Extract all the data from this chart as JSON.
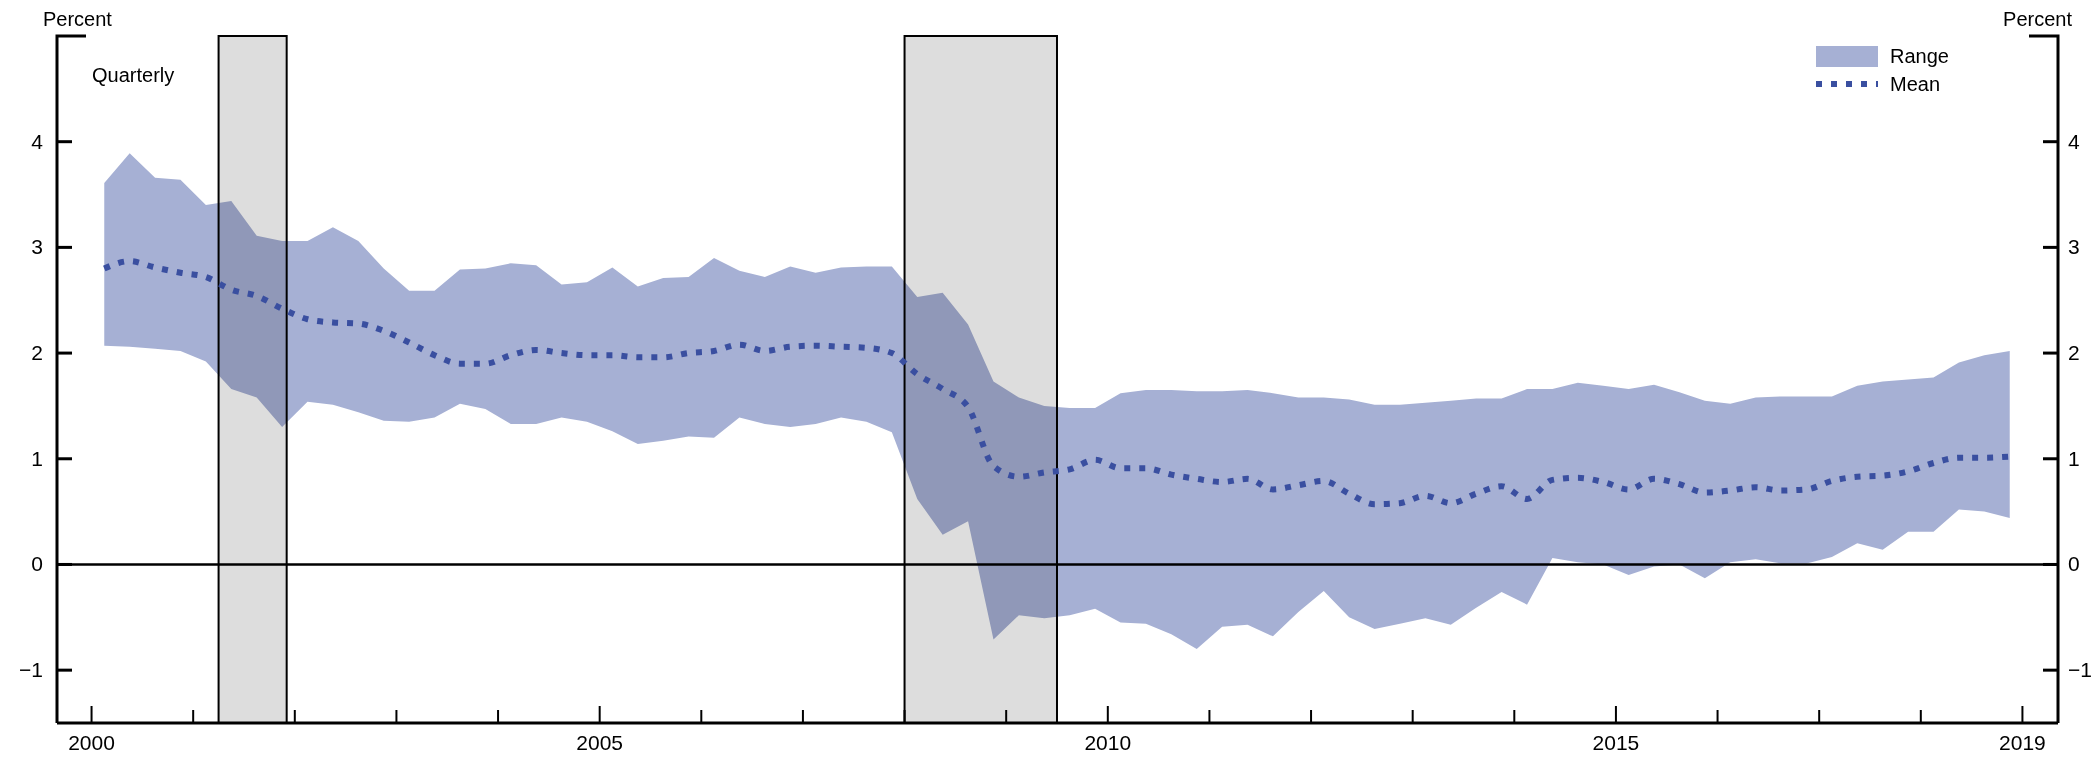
{
  "chart_data": {
    "type": "line",
    "ylabel": "Percent",
    "y2label": "Percent",
    "annotations": [
      "Quarterly",
      "Range"
    ],
    "x": [
      2000.125,
      2000.375,
      2000.625,
      2000.875,
      2001.125,
      2001.375,
      2001.625,
      2001.875,
      2002.125,
      2002.375,
      2002.625,
      2002.875,
      2003.125,
      2003.375,
      2003.625,
      2003.875,
      2004.125,
      2004.375,
      2004.625,
      2004.875,
      2005.125,
      2005.375,
      2005.625,
      2005.875,
      2006.125,
      2006.375,
      2006.625,
      2006.875,
      2007.125,
      2007.375,
      2007.625,
      2007.875,
      2008.125,
      2008.375,
      2008.625,
      2008.875,
      2009.125,
      2009.375,
      2009.625,
      2009.875,
      2010.125,
      2010.375,
      2010.625,
      2010.875,
      2011.125,
      2011.375,
      2011.625,
      2011.875,
      2012.125,
      2012.375,
      2012.625,
      2012.875,
      2013.125,
      2013.375,
      2013.625,
      2013.875,
      2014.125,
      2014.375,
      2014.625,
      2014.875,
      2015.125,
      2015.375,
      2015.625,
      2015.875,
      2016.125,
      2016.375,
      2016.625,
      2016.875,
      2017.125,
      2017.375,
      2017.625,
      2017.875,
      2018.125,
      2018.375,
      2018.625,
      2018.875
    ],
    "series": [
      {
        "name": "Mean",
        "color": "#3a4fa0",
        "line_style": "dotted",
        "values": [
          2.8,
          2.87,
          2.81,
          2.76,
          2.72,
          2.6,
          2.54,
          2.42,
          2.32,
          2.29,
          2.28,
          2.21,
          2.1,
          1.98,
          1.9,
          1.9,
          1.98,
          2.03,
          2.0,
          1.98,
          1.98,
          1.96,
          1.96,
          2.0,
          2.02,
          2.08,
          2.02,
          2.06,
          2.07,
          2.06,
          2.05,
          2.0,
          1.8,
          1.66,
          1.49,
          0.93,
          0.83,
          0.87,
          0.9,
          0.99,
          0.91,
          0.91,
          0.85,
          0.81,
          0.78,
          0.81,
          0.71,
          0.75,
          0.79,
          0.67,
          0.57,
          0.58,
          0.65,
          0.58,
          0.67,
          0.74,
          0.62,
          0.8,
          0.82,
          0.78,
          0.71,
          0.81,
          0.76,
          0.68,
          0.7,
          0.73,
          0.7,
          0.71,
          0.79,
          0.83,
          0.84,
          0.88,
          0.96,
          1.01,
          1.01,
          1.02
        ],
        "lower": [
          2.07,
          2.06,
          2.04,
          2.02,
          1.92,
          1.66,
          1.58,
          1.3,
          1.54,
          1.51,
          1.44,
          1.36,
          1.35,
          1.39,
          1.52,
          1.47,
          1.33,
          1.33,
          1.39,
          1.35,
          1.26,
          1.14,
          1.17,
          1.21,
          1.2,
          1.39,
          1.33,
          1.3,
          1.33,
          1.39,
          1.35,
          1.25,
          0.62,
          0.28,
          0.41,
          -0.71,
          -0.48,
          -0.51,
          -0.48,
          -0.42,
          -0.55,
          -0.56,
          -0.66,
          -0.8,
          -0.59,
          -0.57,
          -0.68,
          -0.45,
          -0.25,
          -0.5,
          -0.61,
          -0.56,
          -0.51,
          -0.57,
          -0.41,
          -0.26,
          -0.38,
          0.06,
          0.02,
          0.0,
          -0.1,
          -0.02,
          0.0,
          -0.13,
          0.02,
          0.05,
          0.01,
          0.01,
          0.07,
          0.2,
          0.14,
          0.31,
          0.31,
          0.52,
          0.5,
          0.44
        ],
        "upper": [
          3.61,
          3.89,
          3.66,
          3.64,
          3.4,
          3.44,
          3.11,
          3.06,
          3.06,
          3.19,
          3.06,
          2.8,
          2.59,
          2.59,
          2.79,
          2.8,
          2.85,
          2.83,
          2.65,
          2.67,
          2.81,
          2.63,
          2.71,
          2.72,
          2.9,
          2.78,
          2.72,
          2.82,
          2.76,
          2.81,
          2.82,
          2.82,
          2.53,
          2.57,
          2.27,
          1.73,
          1.58,
          1.5,
          1.48,
          1.48,
          1.62,
          1.65,
          1.65,
          1.64,
          1.64,
          1.65,
          1.62,
          1.58,
          1.58,
          1.56,
          1.51,
          1.51,
          1.53,
          1.55,
          1.57,
          1.57,
          1.66,
          1.66,
          1.72,
          1.69,
          1.66,
          1.7,
          1.63,
          1.55,
          1.52,
          1.58,
          1.59,
          1.59,
          1.59,
          1.69,
          1.73,
          1.75,
          1.77,
          1.91,
          1.98,
          2.02
        ]
      }
    ],
    "bands": [
      {
        "axis": "x",
        "from": 2001.25,
        "to": 2001.92,
        "color": "#dddddd"
      },
      {
        "axis": "x",
        "from": 2008.0,
        "to": 2009.5,
        "color": "#dddddd"
      }
    ],
    "ref_lines": [
      {
        "axis": "y",
        "value": 0
      }
    ],
    "xlim": [
      1999.66,
      2019.35
    ],
    "xticks": [
      2000,
      {
        "value": 2001,
        "label": null
      },
      {
        "value": 2002,
        "label": null
      },
      {
        "value": 2003,
        "label": null
      },
      {
        "value": 2004,
        "label": null
      },
      2005,
      {
        "value": 2006,
        "label": null
      },
      {
        "value": 2007,
        "label": null
      },
      {
        "value": 2008,
        "label": null
      },
      {
        "value": 2009,
        "label": null
      },
      2010,
      {
        "value": 2011,
        "label": null
      },
      {
        "value": 2012,
        "label": null
      },
      {
        "value": 2013,
        "label": null
      },
      {
        "value": 2014,
        "label": null
      },
      2015,
      {
        "value": 2016,
        "label": null
      },
      {
        "value": 2017,
        "label": null
      },
      {
        "value": 2018,
        "label": null
      },
      2019
    ],
    "ylim": [
      -1.5,
      5
    ],
    "yticks": [
      -1,
      0,
      1,
      2,
      3,
      4
    ],
    "y2lim": [
      -1.5,
      5
    ],
    "y2ticks": [
      -1,
      0,
      1,
      2,
      3,
      4
    ],
    "legend": "top right"
  }
}
